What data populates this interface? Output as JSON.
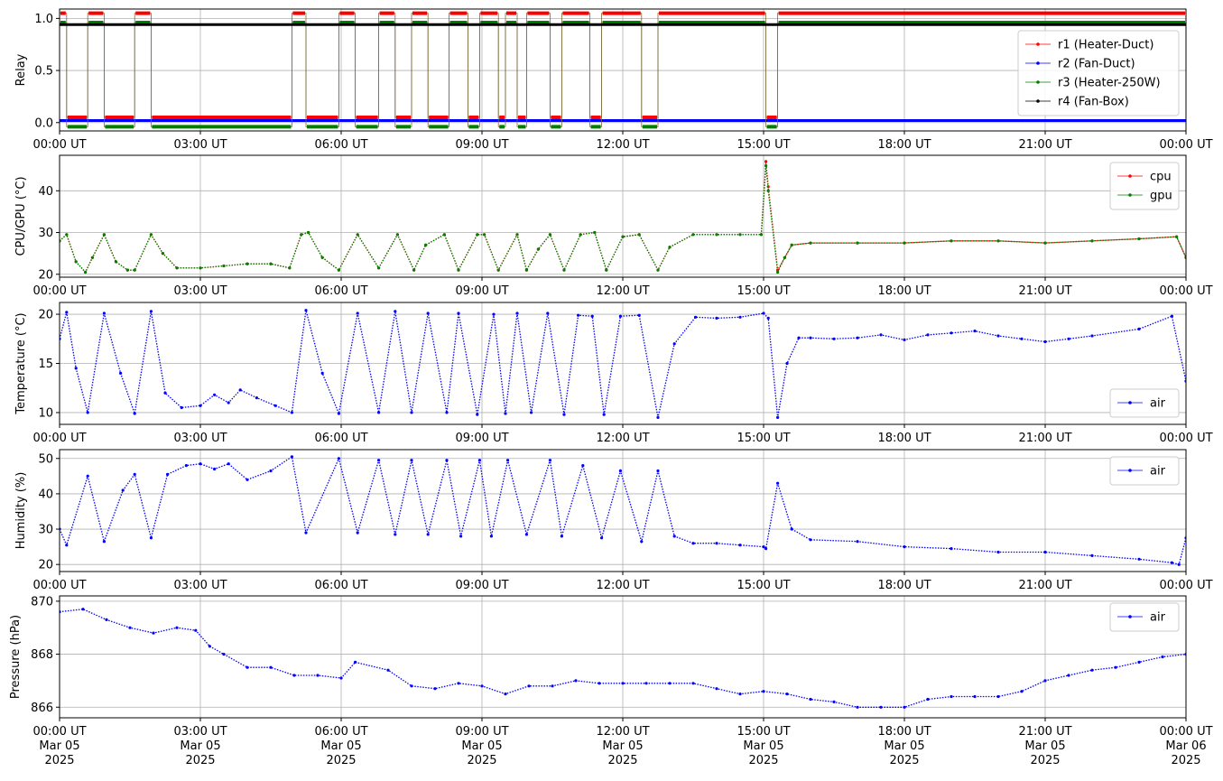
{
  "chart_data": [
    {
      "type": "line",
      "ylabel": "Relay",
      "ylim": [
        -0.08,
        1.09
      ],
      "yticks": [
        "0.0",
        "0.5",
        "1.0"
      ],
      "ytick_values": [
        0.0,
        0.5,
        1.0
      ],
      "xticks": [
        "00:00 UT",
        "03:00 UT",
        "06:00 UT",
        "09:00 UT",
        "12:00 UT",
        "15:00 UT",
        "18:00 UT",
        "21:00 UT",
        "00:00 UT"
      ],
      "grid": true,
      "legend_position": "right",
      "series": [
        {
          "name": "r1 (Heater-Duct)",
          "color": "#ff0000",
          "on_value": 1.05,
          "off_value": 0.05,
          "on_intervals_hours": [
            [
              0.0,
              0.15
            ],
            [
              0.6,
              0.95
            ],
            [
              1.6,
              1.95
            ],
            [
              4.95,
              5.25
            ],
            [
              5.95,
              6.3
            ],
            [
              6.8,
              7.15
            ],
            [
              7.5,
              7.85
            ],
            [
              8.3,
              8.7
            ],
            [
              8.95,
              9.35
            ],
            [
              9.5,
              9.75
            ],
            [
              9.95,
              10.45
            ],
            [
              10.7,
              11.3
            ],
            [
              11.55,
              12.4
            ],
            [
              12.75,
              15.05
            ],
            [
              15.3,
              24.0
            ]
          ]
        },
        {
          "name": "r2 (Fan-Duct)",
          "color": "#0000ff",
          "constant_value": 0.02
        },
        {
          "name": "r3 (Heater-250W)",
          "color": "#008000",
          "on_value": 0.96,
          "off_value": -0.04,
          "on_intervals_hours": [
            [
              0.0,
              0.15
            ],
            [
              0.6,
              0.95
            ],
            [
              1.6,
              1.95
            ],
            [
              4.95,
              5.25
            ],
            [
              5.95,
              6.3
            ],
            [
              6.8,
              7.15
            ],
            [
              7.5,
              7.85
            ],
            [
              8.3,
              8.7
            ],
            [
              8.95,
              9.35
            ],
            [
              9.5,
              9.75
            ],
            [
              9.95,
              10.45
            ],
            [
              10.7,
              11.3
            ],
            [
              11.55,
              12.4
            ],
            [
              12.75,
              15.05
            ],
            [
              15.3,
              24.0
            ]
          ]
        },
        {
          "name": "r4 (Fan-Box)",
          "color": "#000000",
          "constant_value": 0.94
        }
      ]
    },
    {
      "type": "line",
      "ylabel": "CPU/GPU (°C)",
      "ylim": [
        19.3,
        48.5
      ],
      "yticks": [
        "20",
        "30",
        "40"
      ],
      "ytick_values": [
        20,
        30,
        40
      ],
      "xticks": [
        "00:00 UT",
        "03:00 UT",
        "06:00 UT",
        "09:00 UT",
        "12:00 UT",
        "15:00 UT",
        "18:00 UT",
        "21:00 UT",
        "00:00 UT"
      ],
      "grid": true,
      "legend_position": "top-right",
      "x_hours": [
        0,
        0.15,
        0.35,
        0.55,
        0.7,
        0.95,
        1.2,
        1.45,
        1.6,
        1.95,
        2.2,
        2.5,
        3.0,
        3.5,
        4.0,
        4.5,
        4.9,
        5.15,
        5.3,
        5.6,
        5.95,
        6.35,
        6.8,
        7.2,
        7.55,
        7.8,
        8.2,
        8.5,
        8.9,
        9.05,
        9.35,
        9.75,
        9.95,
        10.2,
        10.45,
        10.75,
        11.1,
        11.4,
        11.65,
        12.0,
        12.35,
        12.75,
        13.0,
        13.5,
        14.0,
        14.5,
        14.95,
        15.05,
        15.1,
        15.3,
        15.45,
        15.6,
        16.0,
        17.0,
        18.0,
        19.0,
        20.0,
        21.0,
        22.0,
        23.0,
        23.8,
        24.0
      ],
      "series": [
        {
          "name": "cpu",
          "color": "#ff0000",
          "values": [
            28,
            29.5,
            23,
            20.5,
            24,
            29.5,
            23,
            21,
            21,
            29.5,
            25,
            21.5,
            21.5,
            22,
            22.5,
            22.5,
            21.5,
            29.5,
            30,
            24,
            21,
            29.5,
            21.5,
            29.5,
            21,
            27,
            29.5,
            21,
            29.5,
            29.5,
            21,
            29.5,
            21,
            26,
            29.5,
            21,
            29.5,
            30,
            21,
            29,
            29.5,
            21,
            26.5,
            29.5,
            29.5,
            29.5,
            29.5,
            47,
            41,
            21,
            24,
            27,
            27.5,
            27.5,
            27.5,
            28,
            28,
            27.5,
            28,
            28.5,
            29,
            24
          ]
        },
        {
          "name": "gpu",
          "color": "#008000",
          "values": [
            28,
            29.5,
            23,
            20.5,
            24,
            29.5,
            23,
            21,
            21,
            29.5,
            25,
            21.5,
            21.5,
            22,
            22.5,
            22.5,
            21.5,
            29.5,
            30,
            24,
            21,
            29.5,
            21.5,
            29.5,
            21,
            27,
            29.5,
            21,
            29.5,
            29.5,
            21,
            29.5,
            21,
            26,
            29.5,
            21,
            29.5,
            30,
            21,
            29,
            29.5,
            21,
            26.5,
            29.5,
            29.5,
            29.5,
            29.5,
            46,
            40,
            20.5,
            24,
            27,
            27.5,
            27.5,
            27.5,
            28,
            28,
            27.5,
            28,
            28.5,
            29,
            24
          ]
        }
      ]
    },
    {
      "type": "line",
      "ylabel": "Temperature (°C)",
      "ylim": [
        8.8,
        21.2
      ],
      "yticks": [
        "10",
        "15",
        "20"
      ],
      "ytick_values": [
        10,
        15,
        20
      ],
      "xticks": [
        "00:00 UT",
        "03:00 UT",
        "06:00 UT",
        "09:00 UT",
        "12:00 UT",
        "15:00 UT",
        "18:00 UT",
        "21:00 UT",
        "00:00 UT"
      ],
      "grid": true,
      "legend_position": "bottom-right",
      "x_hours": [
        0,
        0.15,
        0.35,
        0.6,
        0.95,
        1.3,
        1.6,
        1.95,
        2.25,
        2.6,
        3.0,
        3.3,
        3.6,
        3.85,
        4.2,
        4.6,
        4.95,
        5.25,
        5.6,
        5.95,
        6.35,
        6.8,
        7.15,
        7.5,
        7.85,
        8.25,
        8.5,
        8.9,
        9.25,
        9.5,
        9.75,
        10.05,
        10.4,
        10.75,
        11.05,
        11.35,
        11.6,
        11.95,
        12.35,
        12.75,
        13.1,
        13.55,
        14.0,
        14.5,
        15.0,
        15.1,
        15.3,
        15.5,
        15.75,
        16.0,
        16.5,
        17.0,
        17.5,
        18.0,
        18.5,
        19.0,
        19.5,
        20.0,
        20.5,
        21.0,
        21.5,
        22.0,
        23.0,
        23.7,
        24.0
      ],
      "series": [
        {
          "name": "air",
          "color": "#0000ff",
          "values": [
            17.5,
            20.2,
            14.5,
            10,
            20.1,
            14,
            9.9,
            20.3,
            12,
            10.5,
            10.7,
            11.8,
            11,
            12.3,
            11.5,
            10.7,
            10,
            20.4,
            14,
            9.9,
            20.1,
            10,
            20.3,
            10,
            20.1,
            10,
            20.1,
            9.8,
            20,
            9.9,
            20.1,
            10,
            20.1,
            9.8,
            19.9,
            19.8,
            9.8,
            19.8,
            19.9,
            9.5,
            17,
            19.7,
            19.6,
            19.7,
            20.1,
            19.6,
            9.5,
            15,
            17.6,
            17.6,
            17.5,
            17.6,
            17.9,
            17.4,
            17.9,
            18.1,
            18.3,
            17.8,
            17.5,
            17.2,
            17.5,
            17.8,
            18.5,
            19.8,
            13.2
          ]
        }
      ]
    },
    {
      "type": "line",
      "ylabel": "Humidity (%)",
      "ylim": [
        18,
        52.5
      ],
      "yticks": [
        "20",
        "30",
        "40",
        "50"
      ],
      "ytick_values": [
        20,
        30,
        40,
        50
      ],
      "xticks": [
        "00:00 UT",
        "03:00 UT",
        "06:00 UT",
        "09:00 UT",
        "12:00 UT",
        "15:00 UT",
        "18:00 UT",
        "21:00 UT",
        "00:00 UT"
      ],
      "grid": true,
      "legend_position": "top-right",
      "x_hours": [
        0,
        0.15,
        0.6,
        0.95,
        1.35,
        1.6,
        1.95,
        2.3,
        2.7,
        3.0,
        3.3,
        3.6,
        4.0,
        4.5,
        4.95,
        5.25,
        5.95,
        6.35,
        6.8,
        7.15,
        7.5,
        7.85,
        8.25,
        8.55,
        8.95,
        9.2,
        9.55,
        9.95,
        10.45,
        10.7,
        11.15,
        11.55,
        11.95,
        12.4,
        12.75,
        13.1,
        13.5,
        14.0,
        14.5,
        15.0,
        15.05,
        15.3,
        15.6,
        16.0,
        17.0,
        18.0,
        19.0,
        20.0,
        21.0,
        22.0,
        23.0,
        23.7,
        23.85,
        24.0
      ],
      "series": [
        {
          "name": "air",
          "color": "#0000ff",
          "values": [
            30,
            25.5,
            45,
            26.5,
            41,
            45.5,
            27.5,
            45.5,
            48,
            48.5,
            47,
            48.5,
            44,
            46.5,
            50.5,
            29,
            50,
            29,
            49.5,
            28.5,
            49.5,
            28.5,
            49.5,
            28,
            49.5,
            28,
            49.5,
            28.5,
            49.5,
            28,
            48,
            27.5,
            46.5,
            26.5,
            46.5,
            28,
            26,
            26,
            25.5,
            25,
            24.5,
            43,
            30,
            27,
            26.5,
            25,
            24.5,
            23.5,
            23.5,
            22.5,
            21.5,
            20.5,
            20,
            27.5
          ]
        }
      ]
    },
    {
      "type": "line",
      "ylabel": "Pressure (hPa)",
      "ylim": [
        865.6,
        870.2
      ],
      "yticks": [
        "866",
        "868",
        "870"
      ],
      "ytick_values": [
        866,
        868,
        870
      ],
      "xticks": [
        "00:00 UT\nMar 05\n2025",
        "03:00 UT\nMar 05\n2025",
        "06:00 UT\nMar 05\n2025",
        "09:00 UT\nMar 05\n2025",
        "12:00 UT\nMar 05\n2025",
        "15:00 UT\nMar 05\n2025",
        "18:00 UT\nMar 05\n2025",
        "21:00 UT\nMar 05\n2025",
        "00:00 UT\nMar 06\n2025"
      ],
      "grid": true,
      "legend_position": "top-right",
      "x_hours": [
        0,
        0.5,
        1.0,
        1.5,
        2.0,
        2.5,
        2.9,
        3.2,
        3.5,
        4.0,
        4.5,
        5.0,
        5.5,
        6.0,
        6.3,
        7.0,
        7.5,
        8.0,
        8.5,
        9.0,
        9.5,
        10.0,
        10.5,
        11.0,
        11.5,
        12.0,
        12.5,
        13.0,
        13.5,
        14.0,
        14.5,
        15.0,
        15.5,
        16.0,
        16.5,
        17.0,
        17.5,
        18.0,
        18.5,
        19.0,
        19.5,
        20.0,
        20.5,
        21.0,
        21.5,
        22.0,
        22.5,
        23.0,
        23.5,
        24.0
      ],
      "series": [
        {
          "name": "air",
          "color": "#0000ff",
          "values": [
            869.6,
            869.7,
            869.3,
            869.0,
            868.8,
            869.0,
            868.9,
            868.3,
            868.0,
            867.5,
            867.5,
            867.2,
            867.2,
            867.1,
            867.7,
            867.4,
            866.8,
            866.7,
            866.9,
            866.8,
            866.5,
            866.8,
            866.8,
            867.0,
            866.9,
            866.9,
            866.9,
            866.9,
            866.9,
            866.7,
            866.5,
            866.6,
            866.5,
            866.3,
            866.2,
            866.0,
            866.0,
            866.0,
            866.3,
            866.4,
            866.4,
            866.4,
            866.6,
            867.0,
            867.2,
            867.4,
            867.5,
            867.7,
            867.9,
            868.0
          ]
        }
      ]
    }
  ]
}
